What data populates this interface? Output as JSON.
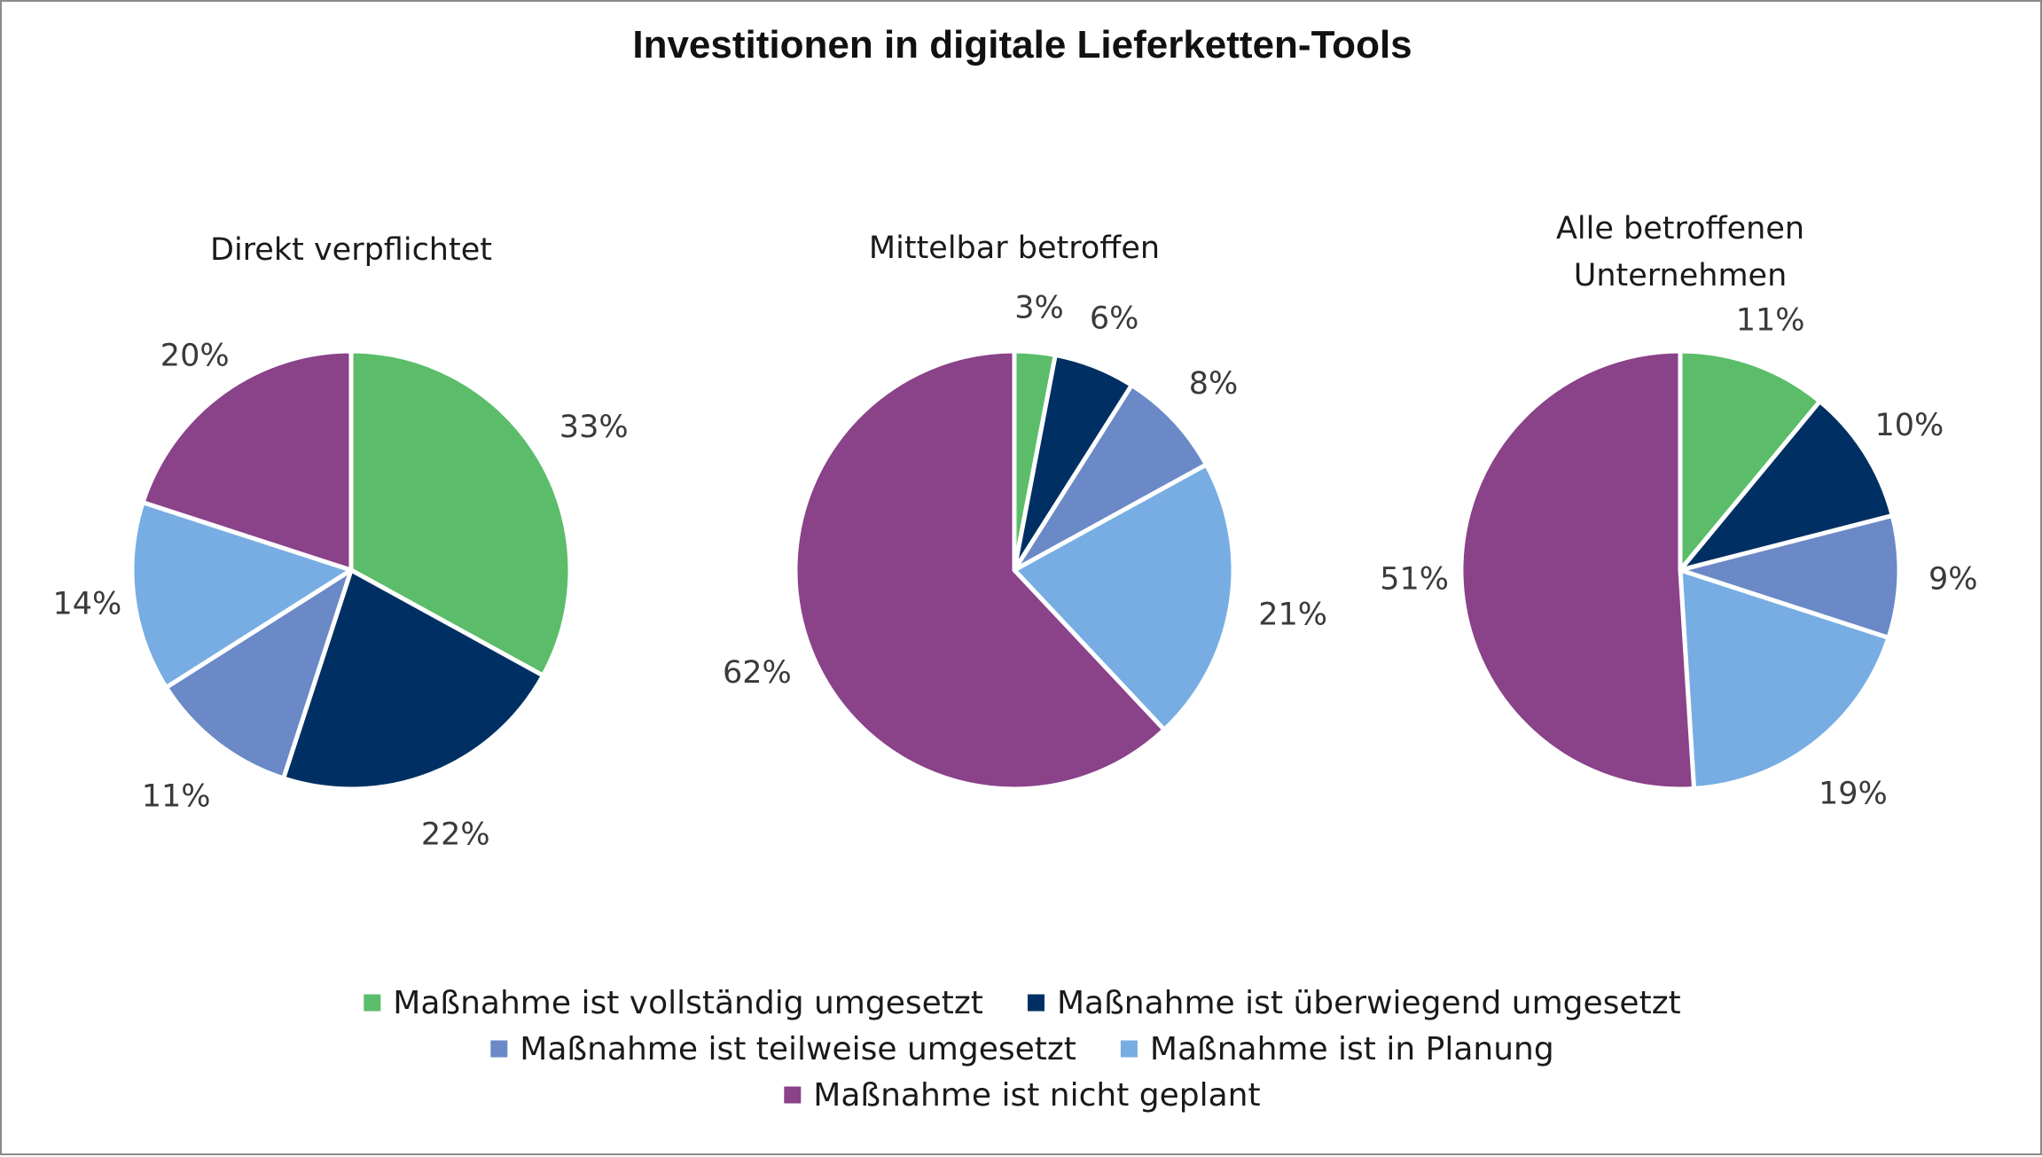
{
  "chart_data": {
    "type": "pie",
    "title": "Investitionen in digitale Lieferketten-Tools",
    "categories": [
      "Maßnahme ist vollständig umgesetzt",
      "Maßnahme ist überwiegend umgesetzt",
      "Maßnahme ist teilweise umgesetzt",
      "Maßnahme ist in Planung",
      "Maßnahme ist nicht geplant"
    ],
    "colors": [
      "#5bbd6a",
      "#003063",
      "#6a89c6",
      "#77ade2",
      "#8a4289"
    ],
    "legend_position": "bottom",
    "pies": [
      {
        "title_lines": [
          "Direkt verpflichtet"
        ],
        "values": [
          33,
          22,
          11,
          14,
          20
        ],
        "labels": [
          "33%",
          "22%",
          "11%",
          "14%",
          "20%"
        ]
      },
      {
        "title_lines": [
          "Mittelbar betroffen"
        ],
        "values": [
          3,
          6,
          8,
          21,
          62
        ],
        "labels": [
          "3%",
          "6%",
          "8%",
          "21%",
          "62%"
        ]
      },
      {
        "title_lines": [
          "Alle betroffenen",
          "Unternehmen"
        ],
        "values": [
          11,
          10,
          9,
          19,
          51
        ],
        "labels": [
          "11%",
          "10%",
          "9%",
          "19%",
          "51%"
        ]
      }
    ]
  }
}
